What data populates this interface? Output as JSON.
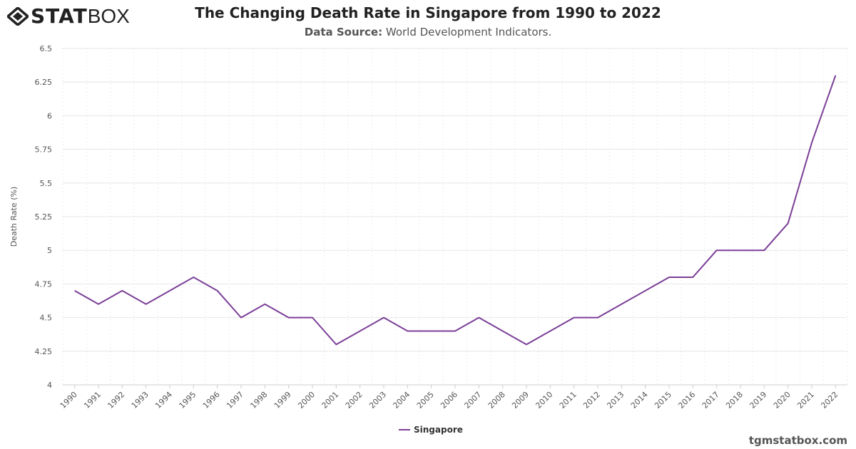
{
  "logo": {
    "bold": "STAT",
    "light": "BOX"
  },
  "header": {
    "title": "The Changing Death Rate in Singapore from 1990 to 2022",
    "source_label": "Data Source:",
    "source_value": "World Development Indicators."
  },
  "footer": {
    "site": "tgmstatbox.com"
  },
  "chart_data": {
    "type": "line",
    "title": "The Changing Death Rate in Singapore from 1990 to 2022",
    "ylabel": "Death Rate (%)",
    "xlabel": "",
    "ylim": [
      4,
      6.5
    ],
    "yticks": [
      "4",
      "4.25",
      "4.5",
      "4.75",
      "5",
      "5.25",
      "5.5",
      "5.75",
      "6",
      "6.25",
      "6.5"
    ],
    "grid": true,
    "legend_position": "bottom",
    "color": "#7b3f98",
    "categories": [
      "1990",
      "1991",
      "1992",
      "1993",
      "1994",
      "1995",
      "1996",
      "1997",
      "1998",
      "1999",
      "2000",
      "2001",
      "2002",
      "2003",
      "2004",
      "2005",
      "2006",
      "2007",
      "2008",
      "2009",
      "2010",
      "2011",
      "2012",
      "2013",
      "2014",
      "2015",
      "2016",
      "2017",
      "2018",
      "2019",
      "2020",
      "2021",
      "2022"
    ],
    "series": [
      {
        "name": "Singapore",
        "values": [
          4.7,
          4.6,
          4.7,
          4.6,
          4.7,
          4.8,
          4.7,
          4.5,
          4.6,
          4.5,
          4.5,
          4.3,
          4.4,
          4.5,
          4.4,
          4.4,
          4.4,
          4.5,
          4.4,
          4.3,
          4.4,
          4.5,
          4.5,
          4.6,
          4.7,
          4.8,
          4.8,
          5.0,
          5.0,
          5.0,
          5.2,
          5.8,
          6.3
        ]
      }
    ]
  }
}
